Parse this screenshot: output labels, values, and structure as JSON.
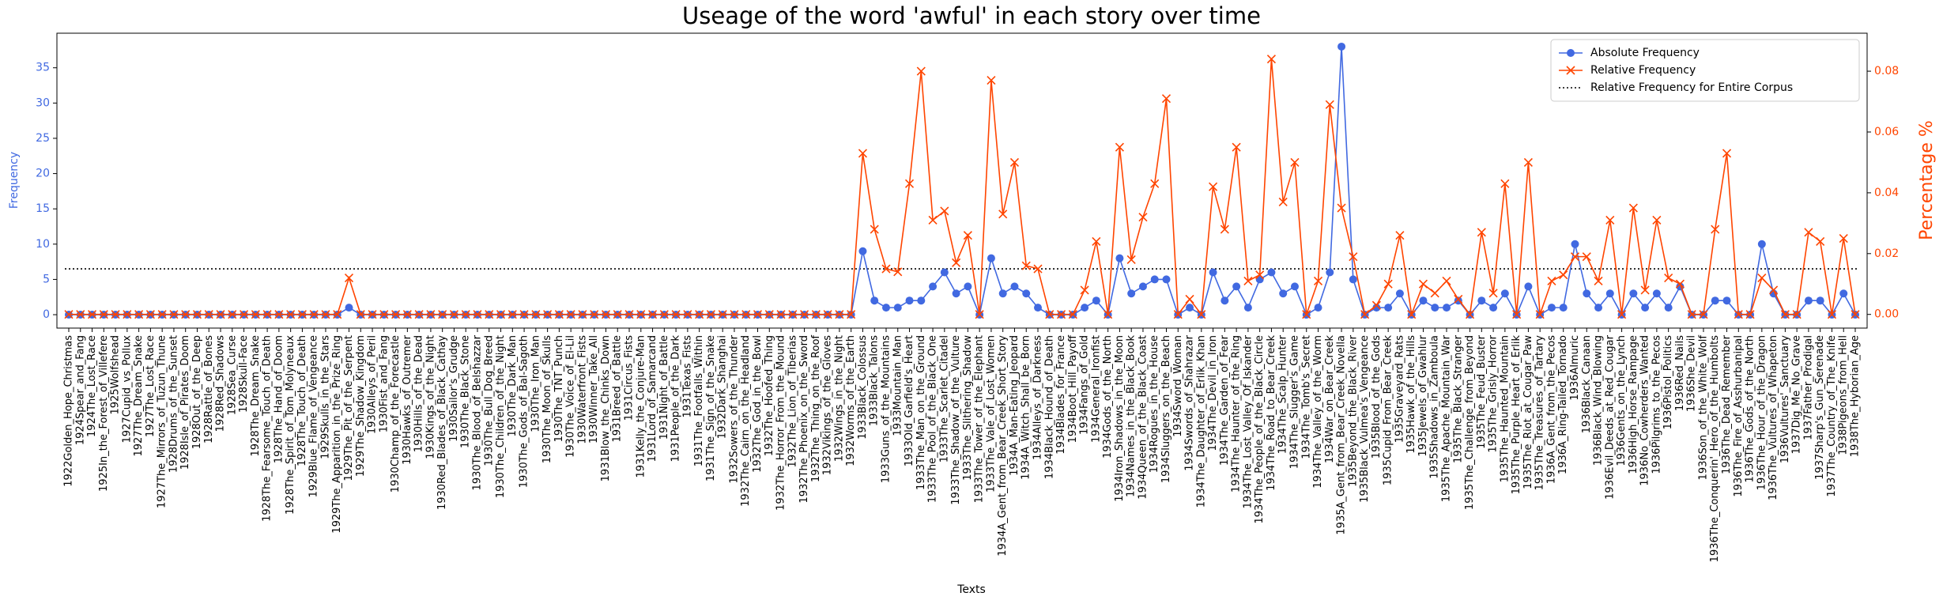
{
  "chart_data": {
    "type": "line",
    "title": "Useage of the word 'awful' in each story over time",
    "xlabel": "Texts",
    "ylabel": "Frequency",
    "y2label": "Percentage %",
    "categories": [
      "1922Golden_Hope_Christmas",
      "1924Spear_and_Fang",
      "1924The_Lost_Race",
      "1925In_the_Forest_of_Villefere",
      "1925Wolfshead",
      "1927Cupid_vs_Pollux",
      "1927The_Dream_Snake",
      "1927The_Lost_Race",
      "1927The_Mirrors_of_Tuzun_Thune",
      "1928Drums_of_the_Sunset",
      "1928Isle_of_Pirates_Doom",
      "1928Out_of_the_Deep",
      "1928Rattle_of_Bones",
      "1928Red_Shadows",
      "1928Sea_Curse",
      "1928Skull-Face",
      "1928The_Dream_Snake",
      "1928The_Fearsome_Touch_of_Death",
      "1928The_Hand_of_Doom",
      "1928The_Spirit_of_Tom_Molyneaux",
      "1928The_Touch_of_Death",
      "1929Blue_Flame_of_Vengeance",
      "1929Skulls_in_the_Stars",
      "1929The_Apparition_in_the_Prize_Ring",
      "1929The_Pit_of_the_Serpent",
      "1929The_Shadow_Kingdom",
      "1930Alleys_of_Peril",
      "1930Fist_and_Fang",
      "1930Champ_of_the_Forecastle",
      "1930Hawks_of_Outremer",
      "1930Hills_of_the_Dead",
      "1930Kings_of_the_Night",
      "1930Red_Blades_of_Black_Cathay",
      "1930Sailor's_Grudge",
      "1930The_Black_Stone",
      "1930The_Blood_of_Belshazzar",
      "1930The_Bull_Dog_Breed",
      "1930The_Children_of_the_Night",
      "1930The_Dark_Man",
      "1930The_Gods_of_Bal-Sagoth",
      "1930The_Iron_Man",
      "1930The_Moon_of_Skulls",
      "1930The_TNT_Punch",
      "1930The_Voice_of_El-Lil",
      "1930Waterfront_Fists",
      "1930Winner_Take_All",
      "1931Blow_the_Chinks_Down",
      "1931Breed_of_Battle",
      "1931Circus_Fists",
      "1931Kelly_the_Conjure-Man",
      "1931Lord_of_Samarcand",
      "1931Night_of_Battle",
      "1931People_of_the_Dark",
      "1931Texas_Fists",
      "1931The_Footfalls_Within",
      "1931The_Sign_of_the_Snake",
      "1932Dark_Shanghai",
      "1932Sowers_of_the_Thunder",
      "1932The_Cairn_on_the_Headland",
      "1932The_God_in_the_Bowl",
      "1932The_Hoofed_Thing",
      "1932The_Horror_From_the_Mound",
      "1932The_Lion_of_Tiberias",
      "1932The_Phoenix_on_the_Sword",
      "1932The_Thing_on_the_Roof",
      "1932Vikings_of_the_Gloves",
      "1932Wings_in_the_Night",
      "1932Worms_of_the_Earth",
      "1933Black_Colossus",
      "1933Black_Talons",
      "1933Guns_of_the_Mountains",
      "1933Mountain_Man",
      "1933Old_Garfield's_Heart",
      "1933The_Man_on_the_Ground",
      "1933The_Pool_of_the_Black_One",
      "1933The_Scarlet_Citadel",
      "1933The_Shadow_of_the_Vulture",
      "1933The_Slithering_Shadow",
      "1933The_Tower_of_the_Elephant",
      "1933The_Vale_of_Lost_Women",
      "1934A_Gent_from_Bear_Creek_Short_Story",
      "1934A_Man-Eating_Jeopard",
      "1934A_Witch_Shall_be_Born",
      "1934Alleys_of_Darkness",
      "1934Black_Hound_of_Death",
      "1934Blades_for_France",
      "1934Boot_Hill_Payoff",
      "1934Fangs_of_Gold",
      "1934General_Ironfist",
      "1934Gods_of_the_North",
      "1934Iron_Shadows_in_the_Moon",
      "1934Names_in_the_Black_Book",
      "1934Queen_of_the_Black_Coast",
      "1934Rogues_in_the_House",
      "1934Sluggers_on_the_Beach",
      "1934Sword_Woman",
      "1934Swords_of_Shahrazar",
      "1934The_Daughter_of_Erlik_Khan",
      "1934The_Devil_in_Iron",
      "1934The_Garden_of_Fear",
      "1934The_Haunter_of_the_Ring",
      "1934The_Lost_Valley_Of_Iskander",
      "1934The_People_of_the_Black_Circle",
      "1934The_Road_to_Bear_Creek",
      "1934The_Scalp_Hunter",
      "1934The_Slugger's_Game",
      "1934The_Tomb's_Secret",
      "1934The_Valley_of_the_Worm",
      "1934War_on_Bear_Creek",
      "1935A_Gent_from_Bear_Creek_Novella",
      "1935Beyond_the_Black_River",
      "1935Black_Vulmea's_Vengeance",
      "1935Blood_of_the_Gods",
      "1935Cupid_From_Bear_Creek",
      "1935Graveyard_Rats",
      "1935Hawk_of_the_Hills",
      "1935Jewels_of_Gwahlur",
      "1935Shadows_in_Zamboula",
      "1935The_Apache_Mountain_War",
      "1935The_Black_Stranger",
      "1935The_Challenge_from_Beyond",
      "1935The_Feud_Buster",
      "1935The_Grisly_Horror",
      "1935The_Haunted_Mountain",
      "1935The_Purple_Heart_of_Erlik",
      "1935The_Riot_at_Cougar_Paw",
      "1935The_Treasures_of_Tartary",
      "1936A_Gent_from_the_Pecos",
      "1936A_Ring-Tailed_Tornado",
      "1936Almuric",
      "1936Black_Canaan",
      "1936Black_Wind_Blowing",
      "1936Evil_Deeds_at_Red_Cougar",
      "1936Gents_on_the_Lynch",
      "1936High_Horse_Rampage",
      "1936No_Cowherders_Wanted",
      "1936Pilgrims_to_the_Pecos",
      "1936Pistol_Politics",
      "1936Red_Nails",
      "1936She_Devil",
      "1936Son_of_the_White_Wolf",
      "1936The_Conquerin'_Hero_of_the_Humbolts",
      "1936The_Dead_Remember",
      "1936The_Fire_of_Asshurbanipal",
      "1936The_Gods_of_the_North",
      "1936The_Hour_of_the_Dragon",
      "1936The_Vultures_of_Whapeton",
      "1936Vultures'_Sanctuary",
      "1937Dig_Me_No_Grave",
      "1937Father_Prodigal",
      "1937Sharp's_Gun_Serenade",
      "1937The_Country_of_The_Knife",
      "1938Pigeons_from_Hell",
      "1938The_Hyborian_Age"
    ],
    "series": [
      {
        "name": "Absolute Frequency",
        "color": "#4169e1",
        "marker": "circle",
        "axis": "y",
        "values": [
          0,
          0,
          0,
          0,
          0,
          0,
          0,
          0,
          0,
          0,
          0,
          0,
          0,
          0,
          0,
          0,
          0,
          0,
          0,
          0,
          0,
          0,
          0,
          0,
          1,
          0,
          0,
          0,
          0,
          0,
          0,
          0,
          0,
          0,
          0,
          0,
          0,
          0,
          0,
          0,
          0,
          0,
          0,
          0,
          0,
          0,
          0,
          0,
          0,
          0,
          0,
          0,
          0,
          0,
          0,
          0,
          0,
          0,
          0,
          0,
          0,
          0,
          0,
          0,
          0,
          0,
          0,
          0,
          9,
          2,
          1,
          1,
          2,
          2,
          4,
          6,
          3,
          4,
          0,
          8,
          3,
          4,
          3,
          1,
          0,
          0,
          0,
          1,
          2,
          0,
          8,
          3,
          4,
          5,
          5,
          0,
          1,
          0,
          6,
          2,
          4,
          1,
          5,
          6,
          3,
          4,
          0,
          1,
          6,
          38,
          5,
          0,
          1,
          1,
          3,
          0,
          2,
          1,
          1,
          2,
          0,
          2,
          1,
          3,
          0,
          4,
          0,
          1,
          1,
          10,
          3,
          1,
          3,
          0,
          3,
          1,
          3,
          1,
          4,
          0,
          0,
          2,
          2,
          0,
          0,
          10,
          3,
          0,
          0,
          2,
          2,
          0,
          3,
          0
        ]
      },
      {
        "name": "Relative Frequency",
        "color": "#ff4500",
        "marker": "x",
        "axis": "y2",
        "values": [
          0,
          0,
          0,
          0,
          0,
          0,
          0,
          0,
          0,
          0,
          0,
          0,
          0,
          0,
          0,
          0,
          0,
          0,
          0,
          0,
          0,
          0,
          0,
          0,
          0.012,
          0,
          0,
          0,
          0,
          0,
          0,
          0,
          0,
          0,
          0,
          0,
          0,
          0,
          0,
          0,
          0,
          0,
          0,
          0,
          0,
          0,
          0,
          0,
          0,
          0,
          0,
          0,
          0,
          0,
          0,
          0,
          0,
          0,
          0,
          0,
          0,
          0,
          0,
          0,
          0,
          0,
          0,
          0,
          0.053,
          0.028,
          0.015,
          0.014,
          0.043,
          0.08,
          0.031,
          0.034,
          0.017,
          0.026,
          0,
          0.077,
          0.033,
          0.05,
          0.016,
          0.015,
          0,
          0,
          0,
          0.008,
          0.024,
          0,
          0.055,
          0.018,
          0.032,
          0.043,
          0.071,
          0,
          0.005,
          0,
          0.042,
          0.028,
          0.055,
          0.011,
          0.013,
          0.084,
          0.037,
          0.05,
          0,
          0.011,
          0.069,
          0.035,
          0.019,
          0,
          0.003,
          0.01,
          0.026,
          0,
          0.01,
          0.007,
          0.011,
          0.005,
          0,
          0.027,
          0.007,
          0.043,
          0,
          0.05,
          0,
          0.011,
          0.013,
          0.019,
          0.019,
          0.011,
          0.031,
          0,
          0.035,
          0.008,
          0.031,
          0.012,
          0.01,
          0,
          0,
          0.028,
          0.053,
          0,
          0,
          0.012,
          0.008,
          0,
          0,
          0.027,
          0.024,
          0,
          0.025,
          0
        ]
      }
    ],
    "reference_line": {
      "name": "Relative Frequency for Entire Corpus",
      "value": 0.015,
      "axis": "y2",
      "color": "#000000",
      "style": "dotted"
    },
    "ylim": [
      -1.9,
      39.9
    ],
    "yticks": [
      0,
      5,
      10,
      15,
      20,
      25,
      30,
      35
    ],
    "y2lim": [
      -0.0045,
      0.0925
    ],
    "y2ticks": [
      {
        "value": 0,
        "label": "0.00"
      },
      {
        "value": 0.02,
        "label": "0.02"
      },
      {
        "value": 0.04,
        "label": "0.04"
      },
      {
        "value": 0.06,
        "label": "0.06"
      },
      {
        "value": 0.08,
        "label": "0.08"
      }
    ],
    "grid": false,
    "legend": "upper right"
  }
}
